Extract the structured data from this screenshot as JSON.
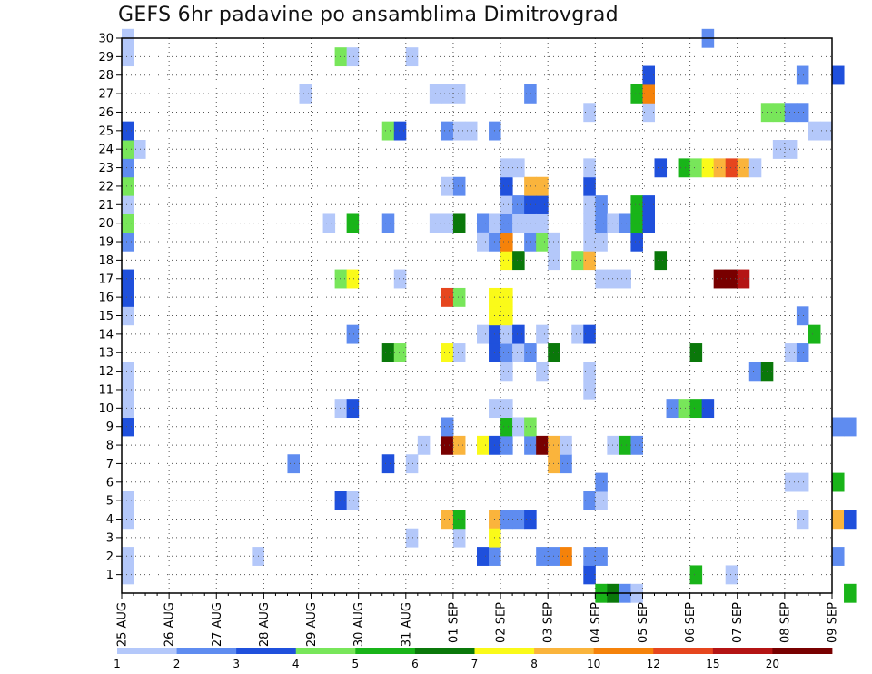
{
  "chart_data": {
    "type": "heatmap",
    "title": "GEFS 6hr padavine po ansamblima Dimitrovgrad",
    "xlabel": "",
    "ylabel": "",
    "x_ticks": [
      "25 AUG",
      "26 AUG",
      "27 AUG",
      "28 AUG",
      "29 AUG",
      "30 AUG",
      "31 AUG",
      "01 SEP",
      "02 SEP",
      "03 SEP",
      "04 SEP",
      "05 SEP",
      "06 SEP",
      "07 SEP",
      "08 SEP",
      "09 SEP"
    ],
    "y_ticks": [
      1,
      2,
      3,
      4,
      5,
      6,
      7,
      8,
      9,
      10,
      11,
      12,
      13,
      14,
      15,
      16,
      17,
      18,
      19,
      20,
      21,
      22,
      23,
      24,
      25,
      26,
      27,
      28,
      29,
      30
    ],
    "steps_per_day": 4,
    "ylim": [
      0,
      30
    ],
    "grid": true,
    "legend_position": "bottom",
    "color_levels": [
      {
        "label": "1",
        "color": "#b4c8fa"
      },
      {
        "label": "2",
        "color": "#5f8cf0"
      },
      {
        "label": "3",
        "color": "#1f50dc"
      },
      {
        "label": "4",
        "color": "#78e65a"
      },
      {
        "label": "5",
        "color": "#19b419"
      },
      {
        "label": "6",
        "color": "#0a780a"
      },
      {
        "label": "7",
        "color": "#fafa19"
      },
      {
        "label": "8",
        "color": "#fab43c"
      },
      {
        "label": "10",
        "color": "#f5820a"
      },
      {
        "label": "12",
        "color": "#e6461e"
      },
      {
        "label": "15",
        "color": "#b41414"
      },
      {
        "label": "20",
        "color": "#780000"
      }
    ],
    "cells": [
      [
        0,
        1,
        1
      ],
      [
        0,
        2,
        1
      ],
      [
        0,
        4,
        1
      ],
      [
        0,
        5,
        1
      ],
      [
        0,
        9,
        3
      ],
      [
        0,
        10,
        1
      ],
      [
        0,
        11,
        1
      ],
      [
        0,
        12,
        1
      ],
      [
        0,
        15,
        1
      ],
      [
        0,
        16,
        3
      ],
      [
        0,
        17,
        3
      ],
      [
        0,
        19,
        2
      ],
      [
        0,
        20,
        4
      ],
      [
        0,
        21,
        1
      ],
      [
        0,
        22,
        4
      ],
      [
        0,
        23,
        2
      ],
      [
        0,
        24,
        4
      ],
      [
        1,
        24,
        1
      ],
      [
        0,
        25,
        3
      ],
      [
        0,
        29,
        1
      ],
      [
        0,
        30,
        1
      ],
      [
        11,
        2,
        1
      ],
      [
        14,
        7,
        2
      ],
      [
        15,
        27,
        1
      ],
      [
        17,
        20,
        1
      ],
      [
        18,
        5,
        3
      ],
      [
        18,
        10,
        1
      ],
      [
        18,
        17,
        4
      ],
      [
        18,
        29,
        4
      ],
      [
        19,
        5,
        1
      ],
      [
        19,
        10,
        3
      ],
      [
        19,
        14,
        2
      ],
      [
        19,
        17,
        7
      ],
      [
        19,
        20,
        5
      ],
      [
        19,
        29,
        1
      ],
      [
        22,
        7,
        3
      ],
      [
        22,
        13,
        6
      ],
      [
        22,
        20,
        2
      ],
      [
        22,
        25,
        4
      ],
      [
        23,
        13,
        4
      ],
      [
        23,
        17,
        1
      ],
      [
        23,
        25,
        3
      ],
      [
        24,
        3,
        1
      ],
      [
        24,
        7,
        1
      ],
      [
        24,
        29,
        1
      ],
      [
        25,
        8,
        1
      ],
      [
        26,
        20,
        1
      ],
      [
        26,
        27,
        1
      ],
      [
        27,
        20,
        1
      ],
      [
        27,
        27,
        1
      ],
      [
        27,
        22,
        1
      ],
      [
        27,
        25,
        2
      ],
      [
        27,
        4,
        8
      ],
      [
        27,
        8,
        20
      ],
      [
        27,
        9,
        2
      ],
      [
        27,
        13,
        7
      ],
      [
        27,
        16,
        12
      ],
      [
        28,
        3,
        1
      ],
      [
        28,
        4,
        5
      ],
      [
        28,
        8,
        8
      ],
      [
        28,
        13,
        1
      ],
      [
        28,
        16,
        4
      ],
      [
        28,
        20,
        6
      ],
      [
        28,
        22,
        2
      ],
      [
        28,
        25,
        1
      ],
      [
        28,
        27,
        1
      ],
      [
        29,
        25,
        1
      ],
      [
        30,
        8,
        7
      ],
      [
        30,
        2,
        3
      ],
      [
        30,
        14,
        1
      ],
      [
        30,
        20,
        2
      ],
      [
        30,
        19,
        1
      ],
      [
        31,
        2,
        2
      ],
      [
        31,
        8,
        3
      ],
      [
        31,
        10,
        1
      ],
      [
        31,
        13,
        3
      ],
      [
        31,
        14,
        3
      ],
      [
        31,
        19,
        2
      ],
      [
        31,
        20,
        1
      ],
      [
        31,
        25,
        2
      ],
      [
        31,
        4,
        8
      ],
      [
        31,
        3,
        7
      ],
      [
        31,
        15,
        7
      ],
      [
        31,
        16,
        7
      ],
      [
        32,
        4,
        2
      ],
      [
        32,
        8,
        2
      ],
      [
        32,
        9,
        5
      ],
      [
        32,
        10,
        1
      ],
      [
        32,
        12,
        1
      ],
      [
        32,
        13,
        2
      ],
      [
        32,
        14,
        1
      ],
      [
        32,
        15,
        7
      ],
      [
        32,
        16,
        7
      ],
      [
        32,
        18,
        7
      ],
      [
        32,
        19,
        10
      ],
      [
        32,
        20,
        2
      ],
      [
        32,
        21,
        1
      ],
      [
        32,
        22,
        3
      ],
      [
        32,
        23,
        1
      ],
      [
        33,
        4,
        2
      ],
      [
        33,
        9,
        1
      ],
      [
        33,
        13,
        1
      ],
      [
        33,
        14,
        3
      ],
      [
        33,
        18,
        6
      ],
      [
        33,
        20,
        1
      ],
      [
        33,
        21,
        2
      ],
      [
        33,
        23,
        1
      ],
      [
        34,
        4,
        3
      ],
      [
        34,
        8,
        2
      ],
      [
        34,
        9,
        4
      ],
      [
        34,
        13,
        2
      ],
      [
        34,
        19,
        2
      ],
      [
        34,
        20,
        1
      ],
      [
        34,
        21,
        3
      ],
      [
        34,
        22,
        8
      ],
      [
        34,
        27,
        2
      ],
      [
        35,
        2,
        2
      ],
      [
        35,
        8,
        20
      ],
      [
        35,
        12,
        1
      ],
      [
        35,
        14,
        1
      ],
      [
        35,
        19,
        4
      ],
      [
        35,
        20,
        1
      ],
      [
        35,
        21,
        3
      ],
      [
        35,
        22,
        8
      ],
      [
        36,
        2,
        2
      ],
      [
        36,
        7,
        8
      ],
      [
        36,
        8,
        8
      ],
      [
        36,
        13,
        6
      ],
      [
        36,
        18,
        1
      ],
      [
        36,
        19,
        1
      ],
      [
        37,
        2,
        10
      ],
      [
        37,
        7,
        2
      ],
      [
        37,
        8,
        1
      ],
      [
        38,
        14,
        1
      ],
      [
        38,
        18,
        4
      ],
      [
        39,
        1,
        3
      ],
      [
        39,
        2,
        2
      ],
      [
        39,
        14,
        3
      ],
      [
        39,
        18,
        8
      ],
      [
        39,
        5,
        2
      ],
      [
        39,
        12,
        1
      ],
      [
        39,
        11,
        1
      ],
      [
        39,
        19,
        1
      ],
      [
        39,
        20,
        1
      ],
      [
        39,
        21,
        1
      ],
      [
        39,
        22,
        3
      ],
      [
        39,
        23,
        1
      ],
      [
        39,
        26,
        1
      ],
      [
        40,
        0,
        5
      ],
      [
        40,
        2,
        2
      ],
      [
        40,
        5,
        1
      ],
      [
        40,
        6,
        2
      ],
      [
        40,
        17,
        1
      ],
      [
        40,
        19,
        1
      ],
      [
        40,
        20,
        2
      ],
      [
        40,
        21,
        2
      ],
      [
        41,
        0,
        6
      ],
      [
        41,
        8,
        1
      ],
      [
        41,
        17,
        1
      ],
      [
        41,
        20,
        1
      ],
      [
        42,
        0,
        2
      ],
      [
        42,
        8,
        5
      ],
      [
        42,
        17,
        1
      ],
      [
        42,
        20,
        2
      ],
      [
        43,
        0,
        1
      ],
      [
        43,
        8,
        2
      ],
      [
        43,
        19,
        3
      ],
      [
        43,
        20,
        5
      ],
      [
        43,
        21,
        5
      ],
      [
        43,
        27,
        5
      ],
      [
        44,
        20,
        3
      ],
      [
        44,
        21,
        3
      ],
      [
        44,
        26,
        1
      ],
      [
        44,
        27,
        10
      ],
      [
        44,
        28,
        3
      ],
      [
        45,
        18,
        6
      ],
      [
        45,
        23,
        3
      ],
      [
        46,
        10,
        2
      ],
      [
        47,
        10,
        4
      ],
      [
        47,
        23,
        5
      ],
      [
        48,
        10,
        5
      ],
      [
        48,
        13,
        6
      ],
      [
        48,
        23,
        4
      ],
      [
        48,
        1,
        5
      ],
      [
        49,
        10,
        3
      ],
      [
        49,
        23,
        7
      ],
      [
        49,
        30,
        2
      ],
      [
        50,
        17,
        20
      ],
      [
        50,
        23,
        8
      ],
      [
        51,
        17,
        20
      ],
      [
        51,
        1,
        1
      ],
      [
        51,
        23,
        12
      ],
      [
        52,
        17,
        15
      ],
      [
        52,
        23,
        8
      ],
      [
        53,
        23,
        1
      ],
      [
        53,
        12,
        2
      ],
      [
        54,
        12,
        6
      ],
      [
        54,
        26,
        4
      ],
      [
        55,
        26,
        4
      ],
      [
        55,
        24,
        1
      ],
      [
        56,
        24,
        1
      ],
      [
        56,
        6,
        1
      ],
      [
        57,
        6,
        1
      ],
      [
        56,
        26,
        2
      ],
      [
        57,
        26,
        2
      ],
      [
        56,
        13,
        1
      ],
      [
        57,
        13,
        2
      ],
      [
        57,
        28,
        2
      ],
      [
        57,
        15,
        2
      ],
      [
        58,
        14,
        5
      ],
      [
        57,
        4,
        1
      ],
      [
        58,
        25,
        1
      ],
      [
        59,
        25,
        1
      ],
      [
        60,
        28,
        3
      ],
      [
        60,
        4,
        8
      ],
      [
        60,
        6,
        5
      ],
      [
        60,
        9,
        2
      ],
      [
        60,
        2,
        2
      ],
      [
        61,
        4,
        3
      ],
      [
        61,
        9,
        2
      ],
      [
        61,
        0,
        5
      ]
    ]
  }
}
